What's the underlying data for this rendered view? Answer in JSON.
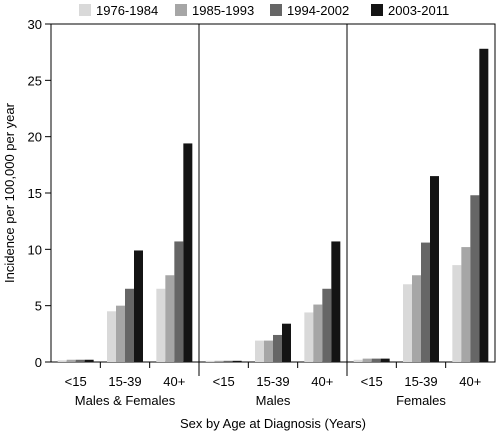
{
  "chart_data": {
    "type": "bar",
    "title": "",
    "xlabel": "Sex by Age at Diagnosis (Years)",
    "ylabel": "Incidence per 100,000 per year",
    "ylim": [
      0,
      30
    ],
    "yticks": [
      0,
      5,
      10,
      15,
      20,
      25,
      30
    ],
    "legend_position": "top",
    "grid": false,
    "series": [
      {
        "name": "1976-1984",
        "color": "#d9d9d9"
      },
      {
        "name": "1985-1993",
        "color": "#a6a6a6"
      },
      {
        "name": "1994-2002",
        "color": "#666666"
      },
      {
        "name": "2003-2011",
        "color": "#141414"
      }
    ],
    "panels": [
      {
        "label": "Males & Females",
        "categories": [
          "<15",
          "15-39",
          "40+"
        ],
        "values": [
          [
            0.15,
            0.2,
            0.2,
            0.2
          ],
          [
            4.5,
            5.0,
            6.5,
            9.9
          ],
          [
            6.5,
            7.7,
            10.7,
            19.4
          ]
        ]
      },
      {
        "label": "Males",
        "categories": [
          "<15",
          "15-39",
          "40+"
        ],
        "values": [
          [
            0.05,
            0.05,
            0.05,
            0.1
          ],
          [
            1.9,
            1.9,
            2.4,
            3.4
          ],
          [
            4.4,
            5.1,
            6.5,
            10.7
          ]
        ]
      },
      {
        "label": "Females",
        "categories": [
          "<15",
          "15-39",
          "40+"
        ],
        "values": [
          [
            0.2,
            0.3,
            0.3,
            0.3
          ],
          [
            6.9,
            7.7,
            10.6,
            16.5
          ],
          [
            8.6,
            10.2,
            14.8,
            27.8
          ]
        ]
      }
    ]
  }
}
